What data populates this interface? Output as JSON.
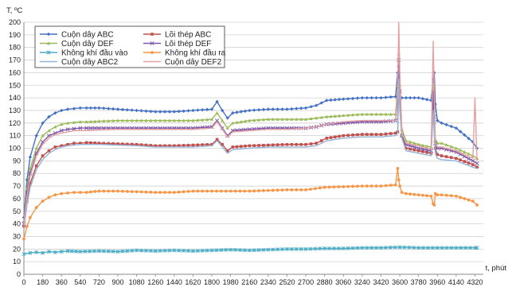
{
  "chart_data": {
    "type": "line",
    "ylabel": "T, ºC",
    "xlabel": "t, phút",
    "ylim": [
      0,
      200
    ],
    "xlim": [
      0,
      4400
    ],
    "yticks": [
      0,
      10,
      20,
      30,
      40,
      50,
      60,
      70,
      80,
      90,
      100,
      110,
      120,
      130,
      140,
      150,
      160,
      170,
      180,
      190,
      200
    ],
    "xticks": [
      0,
      180,
      360,
      540,
      720,
      900,
      1080,
      1260,
      1440,
      1620,
      1800,
      1980,
      2160,
      2340,
      2520,
      2700,
      2880,
      3060,
      3240,
      3420,
      3600,
      3780,
      3960,
      4140,
      4320
    ],
    "grid": "horizontal",
    "legend_position": "top-left",
    "legend_columns": 2,
    "series": [
      {
        "name": "Cuộn dây ABC",
        "color": "#4472C4",
        "marker": "diamond",
        "x": [
          0,
          30,
          60,
          120,
          180,
          240,
          300,
          360,
          420,
          480,
          540,
          600,
          720,
          900,
          1080,
          1260,
          1440,
          1620,
          1800,
          1850,
          1900,
          1950,
          2000,
          2160,
          2340,
          2520,
          2700,
          2800,
          2900,
          3060,
          3240,
          3420,
          3560,
          3580,
          3590,
          3600,
          3620,
          3780,
          3900,
          3920,
          3930,
          3940,
          3960,
          4000,
          4140,
          4300,
          4340
        ],
        "values": [
          45,
          75,
          93,
          110,
          120,
          125,
          128,
          130,
          131,
          131.5,
          132,
          132,
          132,
          131,
          130,
          129,
          129,
          130,
          131,
          137,
          130,
          124,
          128,
          130,
          131,
          131,
          132,
          134,
          138,
          139,
          140,
          140,
          141,
          160,
          150,
          140,
          140,
          140,
          138,
          155,
          160,
          135,
          122,
          120,
          116,
          105,
          100
        ]
      },
      {
        "name": "Lõi thép ABC",
        "color": "#C0504D",
        "marker": "square",
        "x": [
          0,
          30,
          60,
          120,
          180,
          240,
          300,
          360,
          420,
          480,
          540,
          600,
          720,
          900,
          1080,
          1260,
          1440,
          1620,
          1800,
          1850,
          1900,
          1950,
          2000,
          2160,
          2340,
          2520,
          2700,
          2800,
          2900,
          3060,
          3240,
          3420,
          3560,
          3580,
          3590,
          3600,
          3620,
          3660,
          3780,
          3900,
          3920,
          3930,
          3940,
          3960,
          4000,
          4140,
          4300,
          4340
        ],
        "values": [
          38,
          58,
          72,
          86,
          94,
          98,
          101,
          102,
          103,
          104,
          104,
          104.5,
          104,
          103.5,
          103,
          102,
          102,
          102.5,
          103,
          107,
          103,
          98,
          101,
          102,
          102.5,
          103,
          103,
          104,
          108,
          110,
          111,
          111,
          112,
          113,
          165,
          145,
          110,
          100,
          98,
          96,
          140,
          120,
          100,
          95,
          94,
          92,
          87,
          85
        ]
      },
      {
        "name": "Cuộn dây DEF",
        "color": "#9BBB59",
        "marker": "triangle",
        "x": [
          0,
          30,
          60,
          120,
          180,
          240,
          300,
          360,
          420,
          480,
          540,
          600,
          720,
          900,
          1080,
          1260,
          1440,
          1620,
          1800,
          1850,
          1900,
          1950,
          2000,
          2160,
          2340,
          2520,
          2700,
          2800,
          2900,
          3060,
          3240,
          3420,
          3560,
          3580,
          3590,
          3600,
          3620,
          3660,
          3780,
          3900,
          3920,
          3930,
          3940,
          3960,
          4000,
          4140,
          4300,
          4340
        ],
        "values": [
          42,
          68,
          84,
          100,
          110,
          114,
          117,
          119,
          120,
          120.5,
          121,
          121,
          121.5,
          122,
          122,
          122,
          122,
          122,
          123,
          128,
          122,
          116,
          120,
          122,
          123,
          123,
          123,
          124,
          125,
          126,
          127,
          127,
          127,
          150,
          175,
          150,
          115,
          106,
          103,
          101,
          150,
          130,
          107,
          104,
          104,
          100,
          94,
          92
        ]
      },
      {
        "name": "Lõi thép DEF",
        "color": "#7E57A8",
        "marker": "x",
        "x": [
          0,
          30,
          60,
          120,
          180,
          240,
          300,
          360,
          420,
          480,
          540,
          600,
          720,
          900,
          1080,
          1260,
          1440,
          1620,
          1800,
          1850,
          1900,
          1950,
          2000,
          2160,
          2340,
          2520,
          2700,
          2800,
          2900,
          3060,
          3240,
          3420,
          3560,
          3580,
          3590,
          3600,
          3620,
          3660,
          3780,
          3900,
          3920,
          3930,
          3940,
          3960,
          4000,
          4140,
          4300,
          4340
        ],
        "values": [
          40,
          65,
          80,
          96,
          105,
          110,
          112,
          114,
          115,
          115.5,
          116,
          116,
          116,
          116,
          116,
          116,
          116,
          116,
          117,
          122,
          116,
          110,
          114,
          115,
          116,
          116,
          116,
          117,
          119,
          120,
          121,
          121,
          122,
          140,
          170,
          145,
          110,
          103,
          100,
          98,
          145,
          125,
          104,
          100,
          100,
          97,
          90,
          88
        ]
      },
      {
        "name": "Không khí đầu vào",
        "color": "#4BACC6",
        "marker": "star",
        "x": [
          0,
          60,
          120,
          180,
          240,
          300,
          360,
          420,
          540,
          720,
          900,
          1080,
          1260,
          1440,
          1620,
          1800,
          1980,
          2160,
          2340,
          2520,
          2700,
          2880,
          3060,
          3240,
          3420,
          3600,
          3780,
          3960,
          4140,
          4320,
          4340
        ],
        "values": [
          16,
          17,
          17.5,
          17,
          18,
          17.5,
          18,
          18.5,
          18,
          18.5,
          18,
          19,
          18.5,
          19,
          18.5,
          19,
          19.5,
          19,
          19.5,
          20,
          20,
          20.5,
          20.5,
          21,
          21,
          21.5,
          21,
          21,
          21,
          21,
          21
        ]
      },
      {
        "name": "Không khí đầu ra",
        "color": "#F79646",
        "marker": "circle",
        "x": [
          0,
          30,
          60,
          120,
          180,
          240,
          300,
          360,
          420,
          480,
          540,
          600,
          720,
          900,
          1080,
          1260,
          1440,
          1620,
          1800,
          1980,
          2160,
          2340,
          2520,
          2700,
          2880,
          3060,
          3240,
          3420,
          3560,
          3580,
          3590,
          3600,
          3620,
          3660,
          3780,
          3900,
          3920,
          3930,
          3940,
          3960,
          4000,
          4140,
          4300,
          4340
        ],
        "values": [
          28,
          38,
          45,
          53,
          58,
          61,
          63,
          64,
          64.5,
          65,
          65,
          65,
          66,
          66,
          65.5,
          65,
          65,
          66,
          66,
          66,
          66,
          66.5,
          67,
          67,
          69,
          69.5,
          70,
          70,
          71,
          84,
          75,
          70,
          65,
          64,
          63,
          62,
          56,
          55,
          64,
          63,
          63,
          62,
          58,
          55
        ]
      },
      {
        "name": "Cuộn dây ABC2",
        "color": "#95B3D7",
        "marker": "none",
        "x": [
          0,
          30,
          60,
          120,
          180,
          240,
          300,
          360,
          420,
          480,
          540,
          600,
          720,
          900,
          1080,
          1260,
          1440,
          1620,
          1800,
          1850,
          1900,
          1950,
          2000,
          2160,
          2340,
          2520,
          2700,
          2800,
          2900,
          3060,
          3240,
          3420,
          3560,
          3580,
          3590,
          3600,
          3620,
          3660,
          3780,
          3900,
          3920,
          3930,
          3940,
          3960,
          4000,
          4140,
          4300,
          4340
        ],
        "values": [
          36,
          55,
          69,
          83,
          91,
          96,
          99,
          101,
          102,
          102.5,
          103,
          103,
          103,
          102.5,
          102,
          101,
          101,
          101,
          102,
          106,
          101,
          96,
          99,
          100,
          101,
          101,
          101,
          102,
          106,
          108,
          109,
          109,
          110,
          112,
          155,
          130,
          108,
          98,
          96,
          94,
          130,
          110,
          96,
          92,
          91,
          90,
          85,
          84
        ]
      },
      {
        "name": "Cuộn dây DEF2",
        "color": "#E6A0A0",
        "marker": "none",
        "x": [
          0,
          30,
          60,
          120,
          180,
          240,
          300,
          360,
          420,
          480,
          540,
          600,
          720,
          900,
          1080,
          1260,
          1440,
          1620,
          1800,
          1850,
          1900,
          1950,
          2000,
          2160,
          2340,
          2520,
          2700,
          2800,
          2900,
          3060,
          3240,
          3420,
          3560,
          3580,
          3590,
          3600,
          3620,
          3660,
          3780,
          3900,
          3920,
          3930,
          3940,
          3960,
          4000,
          4140,
          4300,
          4320,
          4340
        ],
        "values": [
          39,
          62,
          78,
          94,
          103,
          108,
          111,
          112,
          113,
          114,
          114,
          114,
          114.5,
          115,
          115,
          115,
          115,
          115,
          116,
          121,
          115,
          109,
          113,
          114,
          115,
          115,
          116,
          117,
          119,
          121,
          122,
          122,
          122,
          145,
          200,
          160,
          112,
          104,
          102,
          99,
          185,
          140,
          104,
          101,
          101,
          98,
          92,
          140,
          90
        ]
      }
    ]
  }
}
